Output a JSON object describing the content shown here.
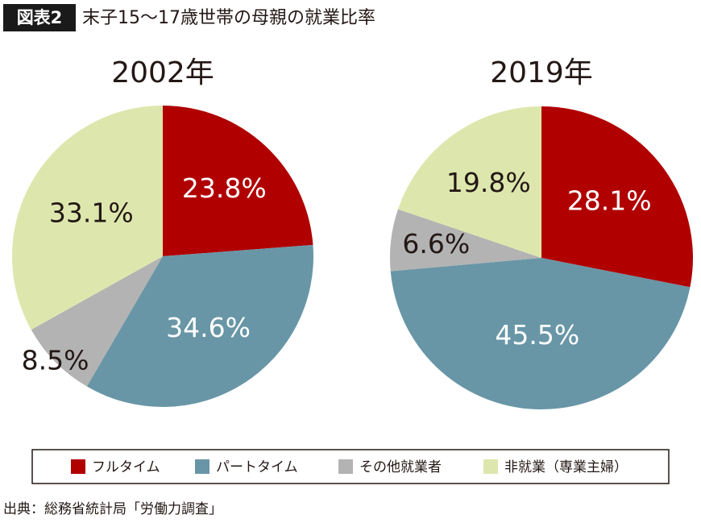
{
  "badge": "図表2",
  "title": "末子15～17歳世帯の母親の就業比率",
  "source": "出典：総務省統計局「労働力調査」",
  "chart_data": [
    {
      "type": "pie",
      "title": "2002年",
      "categories": [
        "フルタイム",
        "パートタイム",
        "その他就業者",
        "非就業（専業主婦）"
      ],
      "values": [
        23.8,
        34.6,
        8.5,
        33.1
      ],
      "value_labels": [
        "23.8%",
        "34.6%",
        "8.5%",
        "33.1%"
      ],
      "colors": [
        "#b00000",
        "#6896a6",
        "#b3b3b3",
        "#dde7ad"
      ]
    },
    {
      "type": "pie",
      "title": "2019年",
      "categories": [
        "フルタイム",
        "パートタイム",
        "その他就業者",
        "非就業（専業主婦）"
      ],
      "values": [
        28.1,
        45.5,
        6.6,
        19.8
      ],
      "value_labels": [
        "28.1%",
        "45.5%",
        "6.6%",
        "19.8%"
      ],
      "colors": [
        "#b00000",
        "#6896a6",
        "#b3b3b3",
        "#dde7ad"
      ]
    }
  ]
}
